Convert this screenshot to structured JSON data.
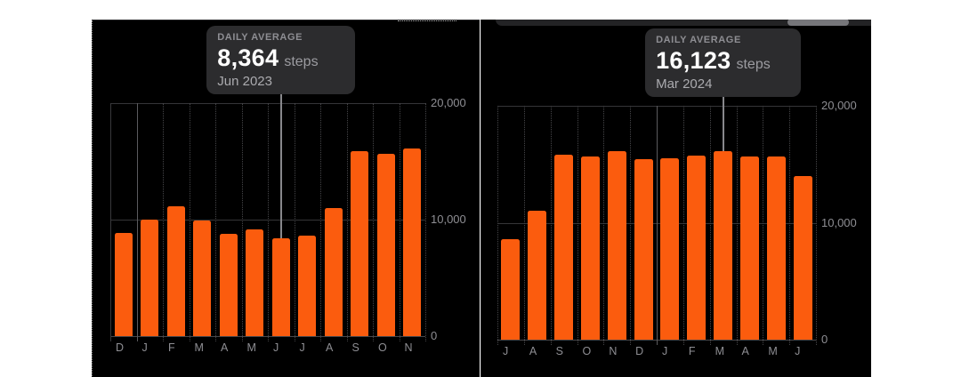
{
  "chart_data": [
    {
      "type": "bar",
      "tooltip": {
        "label": "DAILY AVERAGE",
        "value": "8,364",
        "unit": "steps",
        "period": "Jun 2023"
      },
      "categories": [
        "D",
        "J",
        "F",
        "M",
        "A",
        "M",
        "J",
        "J",
        "A",
        "S",
        "O",
        "N"
      ],
      "values": [
        8850,
        10000,
        11150,
        9950,
        8800,
        9150,
        8364,
        8600,
        11000,
        15850,
        15650,
        16100
      ],
      "highlight_index": 6,
      "year_boundary_after": 1,
      "ylim": [
        0,
        20000
      ],
      "yticks": [
        {
          "value": 0,
          "label": "0"
        },
        {
          "value": 10000,
          "label": "10,000"
        },
        {
          "value": 20000,
          "label": "20,000"
        }
      ],
      "legend": "none",
      "grid": true,
      "bar_color": "#fb5c0e"
    },
    {
      "type": "bar",
      "tooltip": {
        "label": "DAILY AVERAGE",
        "value": "16,123",
        "unit": "steps",
        "period": "Mar 2024"
      },
      "categories": [
        "J",
        "A",
        "S",
        "O",
        "N",
        "D",
        "J",
        "F",
        "M",
        "A",
        "M",
        "J"
      ],
      "values": [
        8600,
        11000,
        15850,
        15650,
        16100,
        15450,
        15550,
        15750,
        16123,
        15700,
        15650,
        14000
      ],
      "highlight_index": 8,
      "year_boundary_after": 6,
      "ylim": [
        0,
        20000
      ],
      "yticks": [
        {
          "value": 0,
          "label": "0"
        },
        {
          "value": 10000,
          "label": "10,000"
        },
        {
          "value": 20000,
          "label": "20,000"
        }
      ],
      "legend": "none",
      "grid": true,
      "bar_color": "#fb5c0e"
    }
  ],
  "colors": {
    "bar": "#fb5c0e",
    "panel_bg": "#000000",
    "tooltip_bg": "#2c2c2e",
    "axis_text": "#8e8e93",
    "pointer": "#88888c",
    "strip": "#232325",
    "pill": "#76767a"
  }
}
